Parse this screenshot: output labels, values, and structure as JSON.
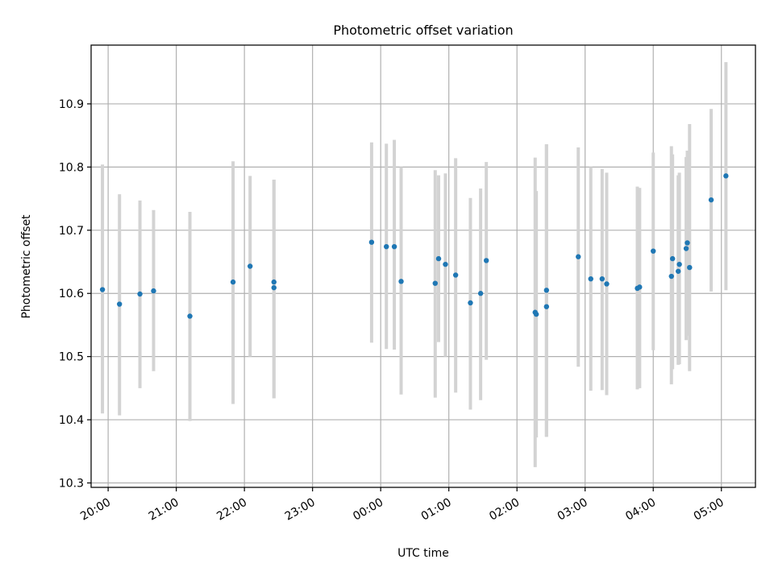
{
  "chart_data": {
    "type": "scatter",
    "title": "Photometric offset variation",
    "xlabel": "UTC time",
    "ylabel": "Photometric offset",
    "x_axis": "time",
    "xlim": [
      "19:45",
      "05:30"
    ],
    "ylim": [
      10.293,
      10.993
    ],
    "grid": true,
    "x_ticks": [
      "20:00",
      "21:00",
      "22:00",
      "23:00",
      "00:00",
      "01:00",
      "02:00",
      "03:00",
      "04:00",
      "05:00"
    ],
    "y_ticks": [
      "10.3",
      "10.4",
      "10.5",
      "10.6",
      "10.7",
      "10.8",
      "10.9"
    ],
    "colors": {
      "point": "#1f77b4",
      "error_bar": "#d3d3d3",
      "grid": "#b0b0b0",
      "axes": "#000000"
    },
    "points": [
      {
        "x": "19:55",
        "y": 10.606,
        "low": 10.41,
        "high": 10.804
      },
      {
        "x": "20:10",
        "y": 10.583,
        "low": 10.407,
        "high": 10.757
      },
      {
        "x": "20:28",
        "y": 10.599,
        "low": 10.45,
        "high": 10.747
      },
      {
        "x": "20:40",
        "y": 10.604,
        "low": 10.477,
        "high": 10.732
      },
      {
        "x": "21:12",
        "y": 10.564,
        "low": 10.398,
        "high": 10.729
      },
      {
        "x": "21:50",
        "y": 10.618,
        "low": 10.425,
        "high": 10.809
      },
      {
        "x": "22:05",
        "y": 10.643,
        "low": 10.5,
        "high": 10.786
      },
      {
        "x": "22:26",
        "y": 10.618,
        "low": 10.434,
        "high": 10.78
      },
      {
        "x": "22:26",
        "y": 10.609,
        "low": 10.434,
        "high": 10.78
      },
      {
        "x": "23:52",
        "y": 10.681,
        "low": 10.522,
        "high": 10.839
      },
      {
        "x": "00:05",
        "y": 10.674,
        "low": 10.512,
        "high": 10.837
      },
      {
        "x": "00:12",
        "y": 10.674,
        "low": 10.511,
        "high": 10.843
      },
      {
        "x": "00:18",
        "y": 10.619,
        "low": 10.44,
        "high": 10.8
      },
      {
        "x": "00:48",
        "y": 10.616,
        "low": 10.435,
        "high": 10.795
      },
      {
        "x": "00:51",
        "y": 10.655,
        "low": 10.523,
        "high": 10.787
      },
      {
        "x": "00:57",
        "y": 10.646,
        "low": 10.5,
        "high": 10.79
      },
      {
        "x": "01:06",
        "y": 10.629,
        "low": 10.443,
        "high": 10.814
      },
      {
        "x": "01:19",
        "y": 10.585,
        "low": 10.416,
        "high": 10.751
      },
      {
        "x": "01:28",
        "y": 10.6,
        "low": 10.431,
        "high": 10.766
      },
      {
        "x": "01:33",
        "y": 10.652,
        "low": 10.495,
        "high": 10.808
      },
      {
        "x": "02:16",
        "y": 10.57,
        "low": 10.325,
        "high": 10.815
      },
      {
        "x": "02:17",
        "y": 10.567,
        "low": 10.372,
        "high": 10.762
      },
      {
        "x": "02:26",
        "y": 10.605,
        "low": 10.373,
        "high": 10.836
      },
      {
        "x": "02:26",
        "y": 10.579,
        "low": 10.373,
        "high": 10.836
      },
      {
        "x": "02:54",
        "y": 10.658,
        "low": 10.484,
        "high": 10.831
      },
      {
        "x": "03:05",
        "y": 10.623,
        "low": 10.446,
        "high": 10.8
      },
      {
        "x": "03:15",
        "y": 10.623,
        "low": 10.447,
        "high": 10.797
      },
      {
        "x": "03:19",
        "y": 10.615,
        "low": 10.439,
        "high": 10.791
      },
      {
        "x": "03:46",
        "y": 10.608,
        "low": 10.448,
        "high": 10.769
      },
      {
        "x": "03:48",
        "y": 10.61,
        "low": 10.45,
        "high": 10.767
      },
      {
        "x": "04:00",
        "y": 10.667,
        "low": 10.51,
        "high": 10.823
      },
      {
        "x": "04:16",
        "y": 10.627,
        "low": 10.456,
        "high": 10.833
      },
      {
        "x": "04:17",
        "y": 10.655,
        "low": 10.48,
        "high": 10.82
      },
      {
        "x": "04:22",
        "y": 10.635,
        "low": 10.487,
        "high": 10.787
      },
      {
        "x": "04:23",
        "y": 10.646,
        "low": 10.488,
        "high": 10.791
      },
      {
        "x": "04:29",
        "y": 10.671,
        "low": 10.526,
        "high": 10.816
      },
      {
        "x": "04:30",
        "y": 10.68,
        "low": 10.533,
        "high": 10.826
      },
      {
        "x": "04:32",
        "y": 10.641,
        "low": 10.477,
        "high": 10.868
      },
      {
        "x": "04:51",
        "y": 10.748,
        "low": 10.603,
        "high": 10.892
      },
      {
        "x": "05:04",
        "y": 10.786,
        "low": 10.605,
        "high": 10.966
      }
    ]
  }
}
